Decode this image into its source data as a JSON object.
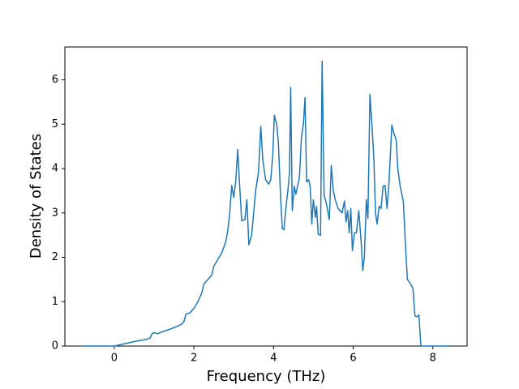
{
  "chart_data": {
    "type": "line",
    "x_label": "Frequency (THz)",
    "y_label": "Density of States",
    "xlim": [
      -1.24,
      8.86
    ],
    "ylim": [
      0,
      6.74
    ],
    "xticks": [
      0,
      2,
      4,
      6,
      8
    ],
    "yticks": [
      0,
      1,
      2,
      3,
      4,
      5,
      6
    ],
    "series": [
      {
        "color": "#1f77b4",
        "x": [
          -0.78,
          0,
          0.5,
          0.8,
          0.9,
          0.95,
          1.0,
          1.1,
          1.2,
          1.4,
          1.6,
          1.7,
          1.75,
          1.8,
          1.9,
          2.0,
          2.1,
          2.2,
          2.25,
          2.35,
          2.45,
          2.5,
          2.6,
          2.7,
          2.8,
          2.85,
          2.9,
          2.95,
          3.0,
          3.05,
          3.1,
          3.15,
          3.2,
          3.28,
          3.33,
          3.38,
          3.45,
          3.5,
          3.55,
          3.62,
          3.68,
          3.73,
          3.8,
          3.88,
          3.93,
          3.98,
          4.02,
          4.08,
          4.12,
          4.18,
          4.22,
          4.26,
          4.32,
          4.36,
          4.4,
          4.43,
          4.47,
          4.52,
          4.56,
          4.65,
          4.7,
          4.75,
          4.79,
          4.83,
          4.88,
          4.92,
          4.96,
          5.0,
          5.05,
          5.08,
          5.12,
          5.18,
          5.22,
          5.27,
          5.33,
          5.4,
          5.45,
          5.5,
          5.55,
          5.62,
          5.72,
          5.78,
          5.82,
          5.86,
          5.9,
          5.94,
          5.98,
          6.03,
          6.08,
          6.14,
          6.2,
          6.24,
          6.28,
          6.33,
          6.37,
          6.42,
          6.47,
          6.52,
          6.56,
          6.6,
          6.65,
          6.7,
          6.75,
          6.8,
          6.85,
          6.9,
          6.97,
          7.02,
          7.08,
          7.12,
          7.18,
          7.26,
          7.3,
          7.36,
          7.42,
          7.5,
          7.55,
          7.6,
          7.65,
          7.7,
          8.4
        ],
        "values": [
          0,
          0,
          0.1,
          0.15,
          0.18,
          0.28,
          0.3,
          0.28,
          0.32,
          0.38,
          0.45,
          0.5,
          0.55,
          0.72,
          0.75,
          0.85,
          1.0,
          1.2,
          1.4,
          1.5,
          1.6,
          1.8,
          1.95,
          2.1,
          2.35,
          2.6,
          3.0,
          3.62,
          3.35,
          3.7,
          4.43,
          3.6,
          2.82,
          2.85,
          3.3,
          2.28,
          2.5,
          3.0,
          3.5,
          3.9,
          4.95,
          4.2,
          3.75,
          3.65,
          3.75,
          4.3,
          5.2,
          5.0,
          4.6,
          3.3,
          2.65,
          2.62,
          3.2,
          3.5,
          3.9,
          5.83,
          3.05,
          3.6,
          3.42,
          3.8,
          4.7,
          5.0,
          5.6,
          3.7,
          3.75,
          3.6,
          2.75,
          3.3,
          2.9,
          3.15,
          2.52,
          2.5,
          6.42,
          3.4,
          3.2,
          2.85,
          4.07,
          3.5,
          3.3,
          3.1,
          3.0,
          3.27,
          2.8,
          3.05,
          2.55,
          3.1,
          2.15,
          2.55,
          2.55,
          3.05,
          2.35,
          1.7,
          2.0,
          3.3,
          2.88,
          5.67,
          5.0,
          4.2,
          3.0,
          2.75,
          3.15,
          3.1,
          3.6,
          3.62,
          3.1,
          3.7,
          4.98,
          4.8,
          4.65,
          4.0,
          3.6,
          3.25,
          2.5,
          1.5,
          1.43,
          1.3,
          0.68,
          0.66,
          0.7,
          0,
          0
        ]
      }
    ]
  }
}
